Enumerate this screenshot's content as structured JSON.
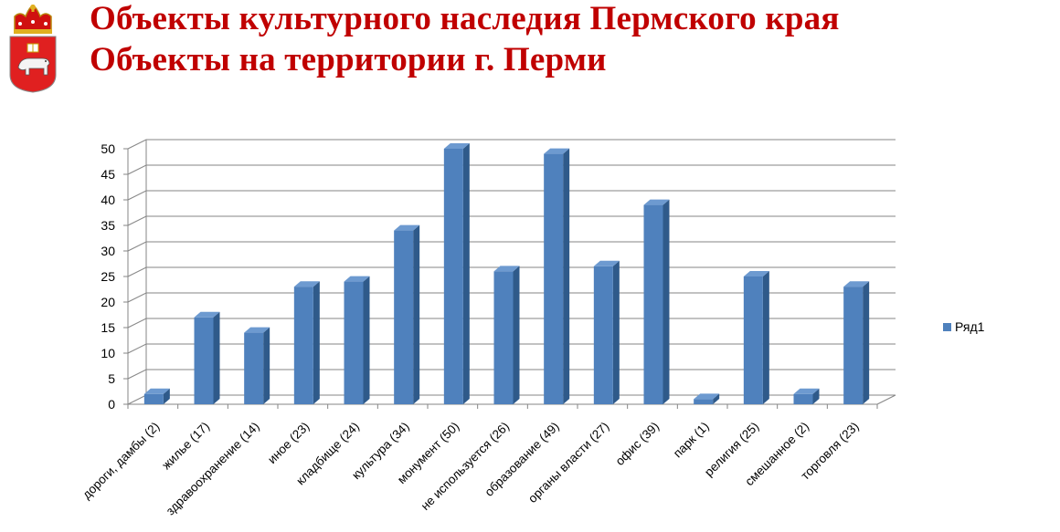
{
  "header": {
    "title_line1": "Объекты культурного наследия Пермского края",
    "title_line2": "Объекты на территории г. Перми",
    "emblem_icon": "perm-krai-coat-of-arms-icon",
    "title_color": "#c00000"
  },
  "chart_data": {
    "type": "bar",
    "style": "3d-column",
    "categories": [
      "дороги, дамбы (2)",
      "жилье (17)",
      "здравоохранение (14)",
      "иное (23)",
      "кладбище (24)",
      "культура (34)",
      "монумент (50)",
      "не используется (26)",
      "образование (49)",
      "органы власти (27)",
      "офис (39)",
      "парк (1)",
      "религия (25)",
      "смешанное (2)",
      "торговля (23)"
    ],
    "series": [
      {
        "name": "Ряд1",
        "color": "#4f81bd",
        "values": [
          2,
          17,
          14,
          23,
          24,
          34,
          50,
          26,
          49,
          27,
          39,
          1,
          25,
          2,
          23
        ]
      }
    ],
    "ylim": [
      0,
      50
    ],
    "yticks": [
      0,
      5,
      10,
      15,
      20,
      25,
      30,
      35,
      40,
      45,
      50
    ],
    "grid": true,
    "legend_position": "right"
  }
}
